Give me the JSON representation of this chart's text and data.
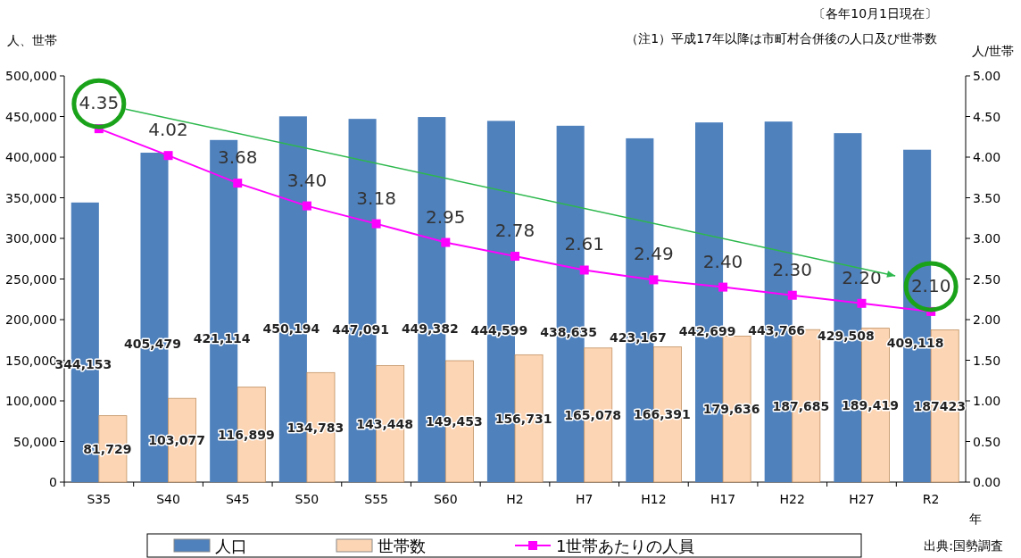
{
  "chart_data": {
    "type": "bar",
    "ylabel": "人、世帯",
    "y2label": "人/世帯",
    "xlabel": "年",
    "annotations": [
      "〔各年10月1日現在〕",
      "（注1）平成17年以降は市町村合併後の人口及び世帯数",
      "出典:国勢調査"
    ],
    "categories": [
      "S35",
      "S40",
      "S45",
      "S50",
      "S55",
      "S60",
      "H2",
      "H7",
      "H12",
      "H17",
      "H22",
      "H27",
      "R2"
    ],
    "series": [
      {
        "name": "人口",
        "color": "#4f81bd",
        "values": [
          344153,
          405479,
          421114,
          450194,
          447091,
          449382,
          444599,
          438635,
          423167,
          442699,
          443766,
          429508,
          409118
        ],
        "value_labels": [
          "344,153",
          "405,479",
          "421,114",
          "450,194",
          "447,091",
          "449,382",
          "444,599",
          "438,635",
          "423,167",
          "442,699",
          "443,766",
          "429,508",
          "409,118"
        ]
      },
      {
        "name": "世帯数",
        "color": "#fcd5b4",
        "values": [
          81729,
          103077,
          116899,
          134783,
          143448,
          149453,
          156731,
          165078,
          166391,
          179636,
          187685,
          189419,
          187423
        ],
        "value_labels": [
          "81,729",
          "103,077",
          "116,899",
          "134,783",
          "143,448",
          "149,453",
          "156,731",
          "165,078",
          "166,391",
          "179,636",
          "187,685",
          "189,419",
          "187423"
        ]
      },
      {
        "name": "1世帯あたりの人員",
        "type": "line",
        "axis": "y2",
        "color": "#ff00ff",
        "values": [
          4.35,
          4.02,
          3.68,
          3.4,
          3.18,
          2.95,
          2.78,
          2.61,
          2.49,
          2.4,
          2.3,
          2.2,
          2.1
        ],
        "value_labels": [
          "4.35",
          "4.02",
          "3.68",
          "3.40",
          "3.18",
          "2.95",
          "2.78",
          "2.61",
          "2.49",
          "2.40",
          "2.30",
          "2.20",
          "2.10"
        ]
      }
    ],
    "marker": "square",
    "legend": "bottom",
    "ylim": [
      0,
      500000
    ],
    "yticks": [
      {
        "value": 0,
        "label": "0"
      },
      {
        "value": 50000,
        "label": "50,000"
      },
      {
        "value": 100000,
        "label": "100,000"
      },
      {
        "value": 150000,
        "label": "150,000"
      },
      {
        "value": 200000,
        "label": "200,000"
      },
      {
        "value": 250000,
        "label": "250,000"
      },
      {
        "value": 300000,
        "label": "300,000"
      },
      {
        "value": 350000,
        "label": "350,000"
      },
      {
        "value": 400000,
        "label": "400,000"
      },
      {
        "value": 450000,
        "label": "450,000"
      },
      {
        "value": 500000,
        "label": "500,000"
      }
    ],
    "y2lim": [
      0,
      5
    ],
    "y2ticks": [
      {
        "value": 0,
        "label": "0.00"
      },
      {
        "value": 0.5,
        "label": "0.50"
      },
      {
        "value": 1,
        "label": "1.00"
      },
      {
        "value": 1.5,
        "label": "1.50"
      },
      {
        "value": 2,
        "label": "2.00"
      },
      {
        "value": 2.5,
        "label": "2.50"
      },
      {
        "value": 3,
        "label": "3.00"
      },
      {
        "value": 3.5,
        "label": "3.50"
      },
      {
        "value": 4,
        "label": "4.00"
      },
      {
        "value": 4.5,
        "label": "4.50"
      },
      {
        "value": 5,
        "label": "5.00"
      }
    ]
  }
}
